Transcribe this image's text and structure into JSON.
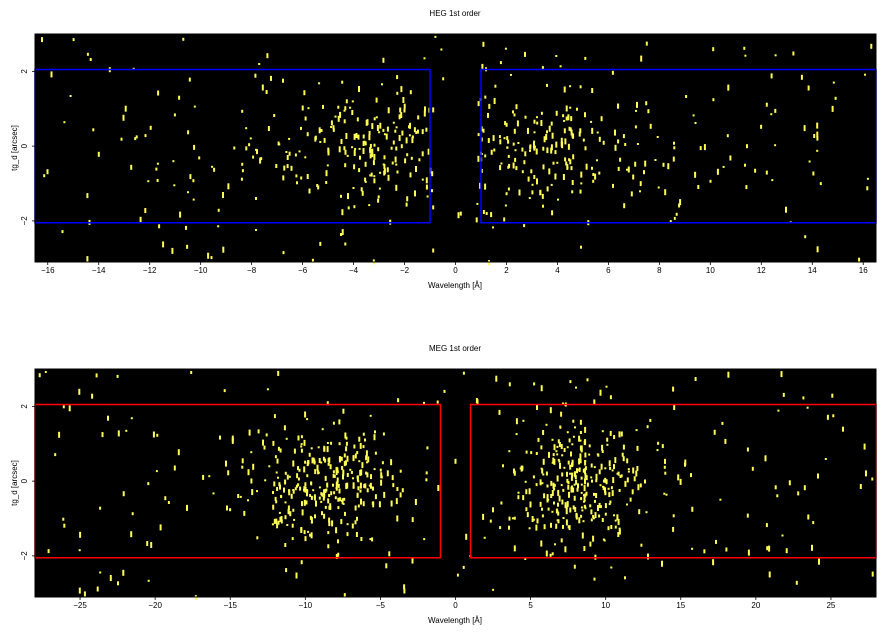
{
  "figure": {
    "background": "#ffffff",
    "panel_background": "#000000",
    "event_color": "#ffff55"
  },
  "chart_data": [
    {
      "type": "scatter",
      "title": "HEG 1st order",
      "xlabel": "Wavelength [Å]",
      "ylabel": "tg_d [arcsec]",
      "xlim": [
        -16.5,
        16.5
      ],
      "ylim": [
        -3.1,
        3.0
      ],
      "xticks": [
        -16,
        -14,
        -12,
        -10,
        -8,
        -6,
        -4,
        -2,
        0,
        2,
        4,
        6,
        8,
        10,
        12,
        14,
        16
      ],
      "xtick_labels": [
        "−16",
        "−14",
        "−12",
        "−10",
        "−8",
        "−6",
        "−4",
        "−2",
        "0",
        "2",
        "4",
        "6",
        "8",
        "10",
        "12",
        "14",
        "16"
      ],
      "yticks": [
        -2,
        0,
        2
      ],
      "ytick_labels": [
        "−2",
        "0",
        "2"
      ],
      "region_color": "#0000ff",
      "regions": [
        {
          "x0": -16.5,
          "x1": -1.0,
          "y0": -2.05,
          "y1": 2.05
        },
        {
          "x0": 1.0,
          "x1": 16.5,
          "y0": -2.05,
          "y1": 2.05
        }
      ],
      "event_seed": 17,
      "event_groups": [
        {
          "x_range": [
            -13.5,
            -0.8
          ],
          "center_x": -2.5,
          "spread_x": 5.5,
          "y_spread": 1.2,
          "count": 230
        },
        {
          "x_range": [
            0.8,
            14.5
          ],
          "center_x": 2.5,
          "spread_x": 6.0,
          "y_spread": 1.2,
          "count": 220
        },
        {
          "x_range": [
            -16.3,
            16.3
          ],
          "center_x": 0,
          "spread_x": 99,
          "y_spread": 3.0,
          "count": 130
        }
      ]
    },
    {
      "type": "scatter",
      "title": "MEG 1st order",
      "xlabel": "Wavelength [Å]",
      "ylabel": "tg_d [arcsec]",
      "xlim": [
        -28,
        28
      ],
      "ylim": [
        -3.1,
        3.0
      ],
      "xticks": [
        -25,
        -20,
        -15,
        -10,
        -5,
        0,
        5,
        10,
        15,
        20,
        25
      ],
      "xtick_labels": [
        "−25",
        "−20",
        "−15",
        "−10",
        "−5",
        "0",
        "5",
        "10",
        "15",
        "20",
        "25"
      ],
      "yticks": [
        -2,
        0,
        2
      ],
      "ytick_labels": [
        "−2",
        "0",
        "2"
      ],
      "region_color": "#ff0000",
      "regions": [
        {
          "x0": -28,
          "x1": -1.0,
          "y0": -2.05,
          "y1": 2.05
        },
        {
          "x0": 1.0,
          "x1": 28,
          "y0": -2.05,
          "y1": 2.05
        }
      ],
      "event_seed": 42,
      "event_groups": [
        {
          "x_range": [
            -20,
            -0.8
          ],
          "center_x": -8.5,
          "spread_x": 5.0,
          "y_spread": 1.2,
          "count": 300
        },
        {
          "x_range": [
            0.8,
            20
          ],
          "center_x": 8.0,
          "spread_x": 5.0,
          "y_spread": 1.2,
          "count": 300
        },
        {
          "x_range": [
            -27.8,
            27.8
          ],
          "center_x": 0,
          "spread_x": 99,
          "y_spread": 3.0,
          "count": 200
        }
      ]
    }
  ]
}
